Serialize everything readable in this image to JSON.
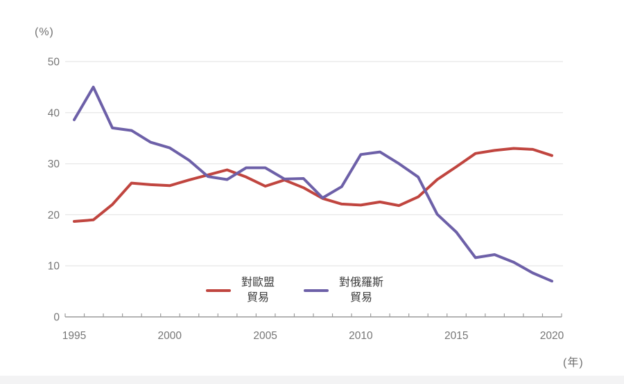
{
  "corner_labels": {
    "y_unit": "(%)",
    "x_unit": "(年)"
  },
  "legend": {
    "items": [
      {
        "name": "對歐盟貿易",
        "line1": "對歐盟",
        "line2": "貿易",
        "color": "#c0453f"
      },
      {
        "name": "對俄羅斯貿易",
        "line1": "對俄羅斯",
        "line2": "貿易",
        "color": "#6d60a8"
      }
    ]
  },
  "chart_data": {
    "type": "line",
    "title": "",
    "xlabel": "(年)",
    "ylabel": "(%)",
    "x": [
      1995,
      1996,
      1997,
      1998,
      1999,
      2000,
      2001,
      2002,
      2003,
      2004,
      2005,
      2006,
      2007,
      2008,
      2009,
      2010,
      2011,
      2012,
      2013,
      2014,
      2015,
      2016,
      2017,
      2018,
      2019,
      2020
    ],
    "series": [
      {
        "name": "對歐盟貿易",
        "color": "#c0453f",
        "values": [
          18.7,
          19.0,
          22.0,
          26.2,
          25.9,
          25.7,
          26.8,
          27.8,
          28.8,
          27.4,
          25.6,
          26.8,
          25.3,
          23.2,
          22.1,
          21.9,
          22.5,
          21.8,
          23.5,
          26.9,
          29.4,
          32.0,
          32.6,
          33.0,
          32.8,
          31.6
        ]
      },
      {
        "name": "對俄羅斯貿易",
        "color": "#6d60a8",
        "values": [
          38.6,
          45.0,
          37.0,
          36.5,
          34.2,
          33.1,
          30.7,
          27.5,
          26.9,
          29.2,
          29.2,
          27.0,
          27.1,
          23.3,
          25.5,
          31.8,
          32.3,
          30.0,
          27.4,
          20.1,
          16.6,
          11.6,
          12.2,
          10.7,
          8.6,
          7.0
        ]
      }
    ],
    "ylim": [
      0,
      50
    ],
    "yticks": [
      0,
      10,
      20,
      30,
      40,
      50
    ],
    "xticks_labeled": [
      1995,
      2000,
      2005,
      2010,
      2015,
      2020
    ],
    "grid": true,
    "legend_position": "bottom-center",
    "colors": {
      "grid": "#e8e8e8",
      "axis": "#9a9a9a",
      "tick_label": "#757575"
    }
  }
}
